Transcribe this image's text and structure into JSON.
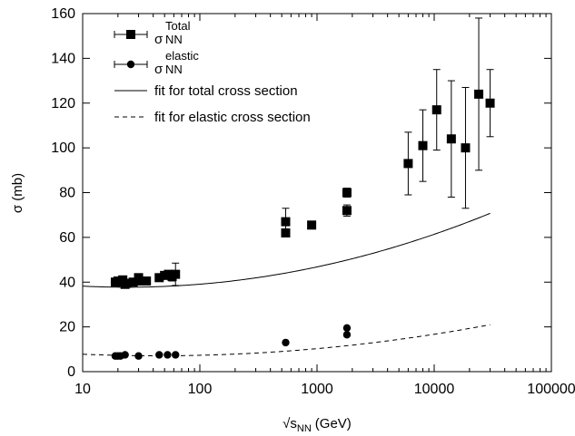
{
  "chart_data": {
    "type": "scatter",
    "title": "",
    "xlabel": {
      "main": "√s",
      "sub": "NN",
      "unit": "(GeV)"
    },
    "ylabel": "σ (mb)",
    "x_scale": "log",
    "xlim": [
      10,
      100000
    ],
    "ylim": [
      0,
      160
    ],
    "x_ticks": [
      10,
      100,
      1000,
      10000,
      100000
    ],
    "x_tick_labels": [
      "10",
      "100",
      "1000",
      "10000",
      "100000"
    ],
    "y_ticks": [
      0,
      20,
      40,
      60,
      80,
      100,
      120,
      140,
      160
    ],
    "y_tick_labels": [
      "0",
      "20",
      "40",
      "60",
      "80",
      "100",
      "120",
      "140",
      "160"
    ],
    "grid": false,
    "legend_position": "top-left",
    "series": [
      {
        "name": "σ_NN^Total",
        "legend": {
          "main": "σ",
          "sub": "NN",
          "sup": "Total"
        },
        "marker": "square",
        "points": [
          {
            "x": 19,
            "y": 40,
            "err": 1
          },
          {
            "x": 20,
            "y": 40.5,
            "err": 1
          },
          {
            "x": 21,
            "y": 40,
            "err": 1
          },
          {
            "x": 22,
            "y": 41,
            "err": 1
          },
          {
            "x": 23,
            "y": 39,
            "err": 1
          },
          {
            "x": 24,
            "y": 39.5,
            "err": 1
          },
          {
            "x": 27,
            "y": 40,
            "err": 1
          },
          {
            "x": 30,
            "y": 42,
            "err": 1
          },
          {
            "x": 31,
            "y": 40.5,
            "err": 1
          },
          {
            "x": 35,
            "y": 40.5,
            "err": 1
          },
          {
            "x": 45,
            "y": 42,
            "err": 1
          },
          {
            "x": 50,
            "y": 43,
            "err": 1.5
          },
          {
            "x": 54,
            "y": 43.5,
            "err": 1.5
          },
          {
            "x": 58,
            "y": 42.5,
            "err": 2
          },
          {
            "x": 62,
            "y": 43.5,
            "err": 5
          },
          {
            "x": 540,
            "y": 67,
            "err": 6
          },
          {
            "x": 540,
            "y": 62,
            "err": 1.5
          },
          {
            "x": 900,
            "y": 65.5,
            "err": 1
          },
          {
            "x": 1800,
            "y": 80,
            "err": 2
          },
          {
            "x": 1800,
            "y": 72,
            "err": 2.5
          },
          {
            "x": 6000,
            "y": 93,
            "err": 14
          },
          {
            "x": 8000,
            "y": 101,
            "err": 16
          },
          {
            "x": 10500,
            "y": 117,
            "err": 18
          },
          {
            "x": 14000,
            "y": 104,
            "err": 26
          },
          {
            "x": 18500,
            "y": 100,
            "err": 27
          },
          {
            "x": 24000,
            "y": 124,
            "err": 34
          },
          {
            "x": 30000,
            "y": 120,
            "err": 15
          }
        ]
      },
      {
        "name": "σ_NN^elastic",
        "legend": {
          "main": "σ",
          "sub": "NN",
          "sup": "elastic"
        },
        "marker": "circle",
        "points": [
          {
            "x": 19,
            "y": 7
          },
          {
            "x": 20,
            "y": 7
          },
          {
            "x": 21,
            "y": 7
          },
          {
            "x": 23,
            "y": 7.5
          },
          {
            "x": 30,
            "y": 7
          },
          {
            "x": 45,
            "y": 7.5
          },
          {
            "x": 53,
            "y": 7.5
          },
          {
            "x": 62,
            "y": 7.5
          },
          {
            "x": 540,
            "y": 13
          },
          {
            "x": 1800,
            "y": 19.5
          },
          {
            "x": 1800,
            "y": 16.5
          }
        ]
      },
      {
        "name": "fit for total cross section",
        "legend": {
          "main": "fit for total cross section"
        },
        "line": "solid",
        "x_range": [
          10,
          30000
        ],
        "model": {
          "form": "a + b*ln(x) + c*ln(x)^2",
          "a": 44.2,
          "b": -4.09,
          "c": 0.6465
        }
      },
      {
        "name": "fit for elastic cross section",
        "legend": {
          "main": "fit for elastic cross section"
        },
        "line": "dashed",
        "x_range": [
          10,
          30000
        ],
        "model": {
          "form": "a + b*ln(x) + c*ln(x)^2",
          "a": 11.7,
          "b": -2.45,
          "c": 0.325
        }
      }
    ]
  }
}
